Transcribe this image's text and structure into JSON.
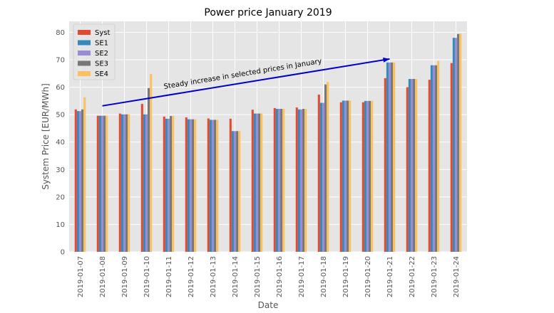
{
  "chart_data": {
    "type": "bar",
    "title": "Power price January 2019",
    "xlabel": "Date",
    "ylabel": "System Price [EUR/MWh]",
    "ylim": [
      0,
      84
    ],
    "yticks": [
      0,
      10,
      20,
      30,
      40,
      50,
      60,
      70,
      80
    ],
    "grid": true,
    "legend_position": "top-left",
    "categories": [
      "2019-01-07",
      "2019-01-08",
      "2019-01-09",
      "2019-01-10",
      "2019-01-11",
      "2019-01-12",
      "2019-01-13",
      "2019-01-14",
      "2019-01-15",
      "2019-01-16",
      "2019-01-17",
      "2019-01-18",
      "2019-01-19",
      "2019-01-20",
      "2019-01-21",
      "2019-01-22",
      "2019-01-23",
      "2019-01-24"
    ],
    "series": [
      {
        "name": "Syst",
        "color": "#E24A33",
        "values": [
          51.9,
          49.6,
          50.4,
          53.9,
          49.3,
          49.0,
          48.6,
          48.5,
          51.8,
          52.4,
          52.6,
          57.3,
          54.5,
          54.5,
          63.3,
          60.0,
          62.7,
          68.8
        ]
      },
      {
        "name": "SE1",
        "color": "#348ABD",
        "values": [
          51.3,
          49.6,
          50.1,
          50.1,
          48.5,
          48.3,
          48.1,
          44.0,
          50.4,
          52.1,
          51.9,
          54.3,
          55.1,
          55.0,
          69.0,
          63.0,
          68.0,
          78.0
        ]
      },
      {
        "name": "SE2",
        "color": "#988ED5",
        "values": [
          51.3,
          49.6,
          50.1,
          50.1,
          48.5,
          48.3,
          48.1,
          44.0,
          50.4,
          52.1,
          51.9,
          54.3,
          55.1,
          55.0,
          69.0,
          63.0,
          68.0,
          78.0
        ]
      },
      {
        "name": "SE3",
        "color": "#777777",
        "values": [
          51.9,
          49.6,
          50.1,
          59.7,
          49.5,
          48.3,
          48.1,
          44.0,
          50.4,
          52.1,
          52.1,
          61.0,
          55.1,
          55.0,
          69.0,
          63.0,
          68.0,
          79.4
        ]
      },
      {
        "name": "SE4",
        "color": "#FBC15E",
        "values": [
          56.3,
          49.6,
          50.1,
          64.8,
          49.5,
          48.3,
          48.1,
          44.0,
          50.4,
          52.1,
          52.1,
          61.9,
          55.1,
          55.0,
          69.0,
          63.0,
          69.6,
          79.5
        ]
      }
    ],
    "annotations": [
      {
        "text": "Steady increase in selected prices in January",
        "color": "#0000CC",
        "arrow_from": {
          "x": "2019-01-08",
          "y": 53.2
        },
        "arrow_to": {
          "x": "2019-01-21",
          "y": 70.3
        }
      }
    ]
  },
  "colors": {
    "plot_background": "#E5E5E5",
    "grid": "#FFFFFF",
    "arrow": "#0000CC"
  }
}
